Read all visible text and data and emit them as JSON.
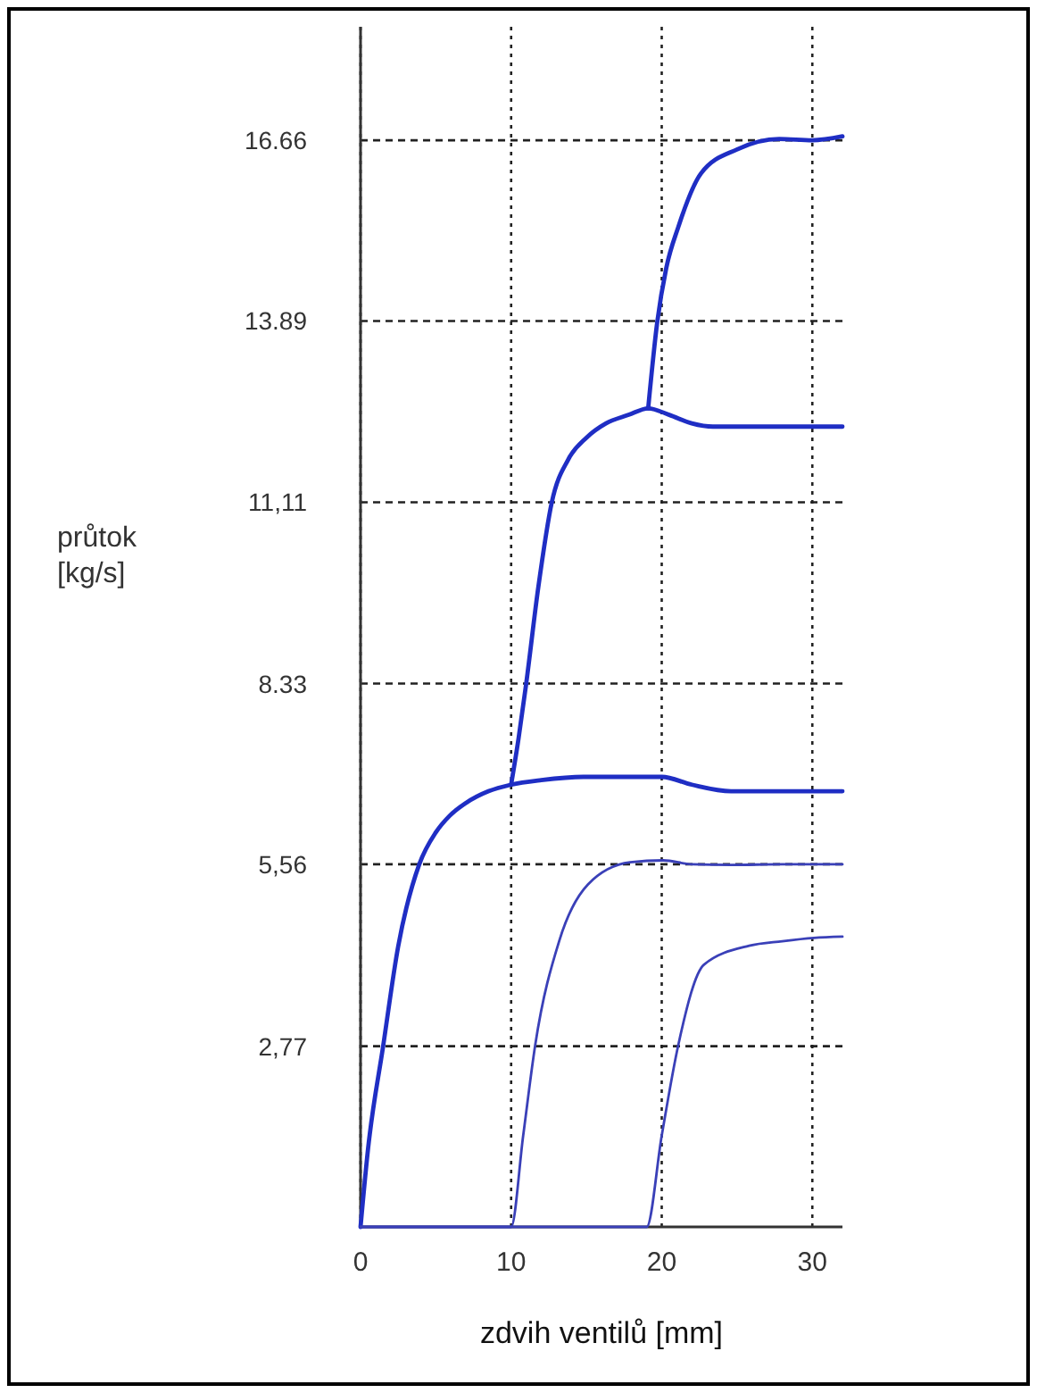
{
  "chart_data": {
    "type": "line",
    "xlabel": "zdvih ventilů [mm]",
    "ylabel": "průtok [kg/s]",
    "xlim": [
      0,
      32
    ],
    "ylim": [
      0,
      18.4
    ],
    "xticks": [
      0,
      10,
      20,
      30
    ],
    "yticks": [
      {
        "value": 2.77,
        "label": "2,77"
      },
      {
        "value": 5.56,
        "label": "5,56"
      },
      8.33,
      {
        "value": 11.11,
        "label": "11,11"
      },
      13.89,
      16.66
    ],
    "grid": true,
    "marker": "none",
    "line_style": "solid",
    "series": [
      {
        "color": "#1f2ec4",
        "x": [
          0,
          0.5,
          1.5,
          2.5,
          3.9,
          5,
          5.9,
          7,
          8.5,
          10,
          12,
          14.8,
          17,
          20,
          22,
          24.6,
          28,
          32
        ],
        "values": [
          0,
          1.2,
          2.77,
          4.3,
          5.56,
          6.05,
          6.3,
          6.5,
          6.68,
          6.78,
          6.85,
          6.9,
          6.9,
          6.9,
          6.78,
          6.68,
          6.68,
          6.68
        ]
      },
      {
        "color": "#1f2ec4",
        "x": [
          10,
          10.5,
          11,
          11.8,
          12.7,
          13.8,
          15,
          16.3,
          17.8,
          19.1,
          20.5,
          22,
          23.4,
          26,
          29,
          32
        ],
        "values": [
          6.78,
          7.5,
          8.33,
          9.8,
          11.11,
          11.77,
          12.1,
          12.32,
          12.45,
          12.55,
          12.45,
          12.32,
          12.27,
          12.27,
          12.27,
          12.27
        ]
      },
      {
        "color": "#1f2ec4",
        "x": [
          19.1,
          19.7,
          20.3,
          21.1,
          22.6,
          25,
          27.8,
          30,
          32
        ],
        "values": [
          12.55,
          13.87,
          14.7,
          15.33,
          16.15,
          16.52,
          16.68,
          16.66,
          16.72
        ]
      },
      {
        "color": "#3a40b8",
        "x": [
          0,
          10,
          10.8,
          11.6,
          13.2,
          15.1,
          17.9,
          20.1,
          22,
          24.6,
          28,
          32
        ],
        "values": [
          0,
          0,
          1.4,
          2.79,
          4.39,
          5.25,
          5.59,
          5.62,
          5.56,
          5.55,
          5.56,
          5.56
        ]
      },
      {
        "color": "#3a40b8",
        "x": [
          0,
          19,
          20,
          21.1,
          22.8,
          25.8,
          28,
          30.1,
          32
        ],
        "values": [
          0,
          0,
          1.4,
          2.79,
          4.02,
          4.31,
          4.38,
          4.43,
          4.45
        ]
      }
    ]
  }
}
